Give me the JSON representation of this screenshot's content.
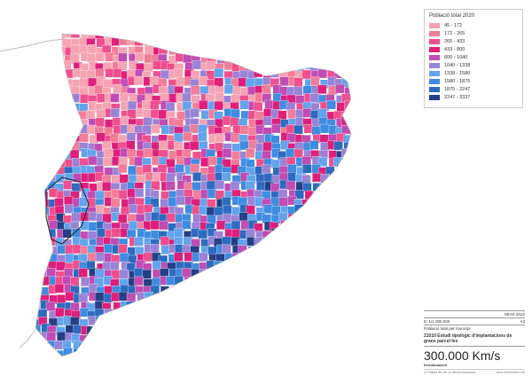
{
  "legend": {
    "title": "Població total 2020",
    "items": [
      {
        "label": "45 - 172",
        "color": "#f5a3b3"
      },
      {
        "label": "172 - 265",
        "color": "#f27d98"
      },
      {
        "label": "265 - 433",
        "color": "#ef4f8e"
      },
      {
        "label": "433 - 800",
        "color": "#de1f7c"
      },
      {
        "label": "800 - 1040",
        "color": "#c04cb4"
      },
      {
        "label": "1040 - 1338",
        "color": "#9a83d6"
      },
      {
        "label": "1338 - 1580",
        "color": "#62a3ec"
      },
      {
        "label": "1580 - 1875",
        "color": "#3f8ce0"
      },
      {
        "label": "1875 - 2247",
        "color": "#2d6bbf"
      },
      {
        "label": "2247 - 3337",
        "color": "#253f87"
      }
    ]
  },
  "title_block": {
    "date": "05-04-2022",
    "scale": "E: 1/1.000.000",
    "format": "A3",
    "subtitle": "Població total per municipi",
    "title": "21010 Estudi tipològic d'implantacions de grans parcel·les",
    "logo": "300.000 Km/s",
    "brand": "tresdomasmil",
    "address": "C/ Pallars 85, 6è 1a 08018 Barcelona",
    "web": "www.300000kms.net"
  }
}
